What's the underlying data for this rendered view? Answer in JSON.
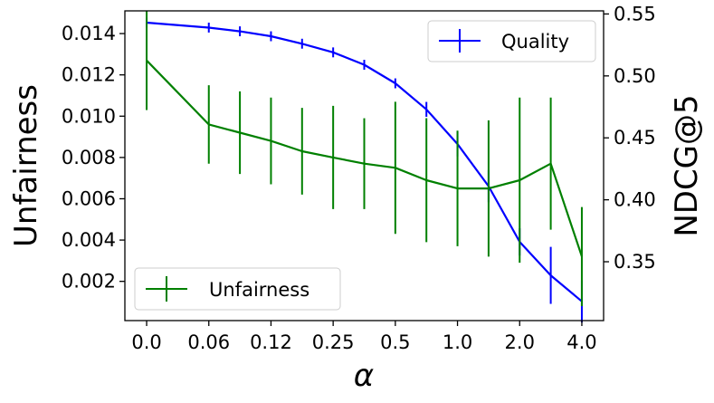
{
  "chart_data": {
    "type": "line",
    "xlabel": "α",
    "ylabel_left": "Unfairness",
    "ylabel_right": "NDCG@5",
    "x_tick_labels": [
      "0.0",
      "0.06",
      "0.12",
      "0.25",
      "0.5",
      "1.0",
      "2.0",
      "4.0"
    ],
    "x_tick_positions": [
      0,
      2,
      4,
      6,
      8,
      10,
      12,
      14
    ],
    "y_left_ticks": [
      "0.002",
      "0.004",
      "0.006",
      "0.008",
      "0.010",
      "0.012",
      "0.014"
    ],
    "y_right_ticks": [
      "0.35",
      "0.40",
      "0.45",
      "0.50",
      "0.55"
    ],
    "y_left_lim": [
      0.0001,
      0.0151
    ],
    "y_right_lim": [
      0.3025,
      0.5525
    ],
    "x_lim": [
      -0.7,
      14.7
    ],
    "grid": false,
    "series": [
      {
        "name": "Quality",
        "axis": "right",
        "color": "#0000ff",
        "x": [
          0,
          2,
          3,
          4,
          5,
          6,
          7,
          8,
          9,
          10,
          11,
          12,
          13,
          14
        ],
        "values": [
          0.543,
          0.539,
          0.536,
          0.532,
          0.526,
          0.519,
          0.509,
          0.494,
          0.473,
          0.445,
          0.411,
          0.366,
          0.339,
          0.318
        ],
        "errors": [
          0.004,
          0.004,
          0.004,
          0.004,
          0.004,
          0.004,
          0.004,
          0.004,
          0.006,
          0.01,
          0.013,
          0.011,
          0.023,
          0.017
        ],
        "legend": "top-right"
      },
      {
        "name": "Unfairness",
        "axis": "left",
        "color": "#008000",
        "x": [
          0,
          2,
          3,
          4,
          5,
          6,
          7,
          8,
          9,
          10,
          11,
          12,
          13,
          14
        ],
        "values": [
          0.0127,
          0.0096,
          0.0092,
          0.0088,
          0.0083,
          0.008,
          0.0077,
          0.0075,
          0.0069,
          0.0065,
          0.0065,
          0.0069,
          0.0077,
          0.0032
        ],
        "errors": [
          0.0024,
          0.0019,
          0.002,
          0.0021,
          0.0021,
          0.0025,
          0.0022,
          0.0032,
          0.003,
          0.0028,
          0.0033,
          0.004,
          0.0032,
          0.0024
        ],
        "legend": "bottom-left"
      }
    ]
  }
}
